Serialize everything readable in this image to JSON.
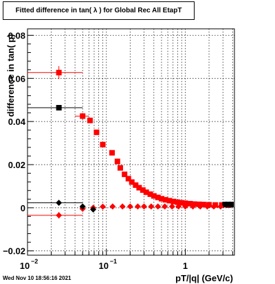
{
  "title": "Fitted difference in tan( λ ) for Global Rec All EtapT",
  "footer": "Wed Nov 10 18:56:16 2021",
  "chart_data": {
    "type": "scatter",
    "title": "Fitted difference in tan( λ ) for Global Rec All EtapT",
    "xlabel": "pT/|q| (GeV/c)",
    "ylabel": "difference in tan( p)",
    "xscale": "log",
    "xlim": [
      0.01,
      4.2
    ],
    "ylim": [
      -0.022,
      0.083
    ],
    "x_ticks": [
      {
        "v": 0.01,
        "label": "10"
      },
      {
        "v": 0.1,
        "label": "10"
      },
      {
        "v": 1,
        "label": "1"
      }
    ],
    "x_tick_exponents": [
      "−2",
      "−1",
      ""
    ],
    "y_ticks": [
      {
        "v": -0.02,
        "label": "−0.02"
      },
      {
        "v": 0,
        "label": "0"
      },
      {
        "v": 0.02,
        "label": "0.02"
      },
      {
        "v": 0.04,
        "label": "0.04"
      },
      {
        "v": 0.06,
        "label": "0.06"
      },
      {
        "v": 0.08,
        "label": "0.08"
      }
    ],
    "grid": true,
    "colors": {
      "red": "#ff0000",
      "black": "#000000"
    },
    "series": [
      {
        "color": "#ff0000",
        "marker": "square",
        "points": [
          {
            "x": 0.025,
            "y": 0.0627,
            "xerr": [
              0.015,
              0.025
            ],
            "yerr": 0.003
          },
          {
            "x": 0.05,
            "y": 0.0425,
            "xerr": [
              0.01,
              0.01
            ],
            "yerr": 0.0015
          },
          {
            "x": 0.062,
            "y": 0.0405
          },
          {
            "x": 0.075,
            "y": 0.035
          },
          {
            "x": 0.09,
            "y": 0.0293
          },
          {
            "x": 0.118,
            "y": 0.0255
          },
          {
            "x": 0.138,
            "y": 0.0215
          },
          {
            "x": 0.15,
            "y": 0.0185
          },
          {
            "x": 0.17,
            "y": 0.0155
          },
          {
            "x": 0.19,
            "y": 0.0135
          },
          {
            "x": 0.21,
            "y": 0.0119
          },
          {
            "x": 0.235,
            "y": 0.0105
          },
          {
            "x": 0.26,
            "y": 0.0093
          },
          {
            "x": 0.29,
            "y": 0.0082
          },
          {
            "x": 0.32,
            "y": 0.0072
          },
          {
            "x": 0.36,
            "y": 0.0063
          },
          {
            "x": 0.4,
            "y": 0.0055
          },
          {
            "x": 0.45,
            "y": 0.0048
          },
          {
            "x": 0.5,
            "y": 0.0042
          },
          {
            "x": 0.56,
            "y": 0.0037
          },
          {
            "x": 0.63,
            "y": 0.0033
          },
          {
            "x": 0.71,
            "y": 0.0029
          },
          {
            "x": 0.8,
            "y": 0.0026
          },
          {
            "x": 0.9,
            "y": 0.0023
          },
          {
            "x": 1.0,
            "y": 0.0021
          },
          {
            "x": 1.15,
            "y": 0.0019
          },
          {
            "x": 1.3,
            "y": 0.0017
          },
          {
            "x": 1.5,
            "y": 0.0016
          },
          {
            "x": 1.7,
            "y": 0.0015
          },
          {
            "x": 2.0,
            "y": 0.0014
          },
          {
            "x": 2.4,
            "y": 0.0013
          },
          {
            "x": 2.9,
            "y": 0.0013
          },
          {
            "x": 3.5,
            "y": 0.0012
          }
        ]
      },
      {
        "color": "#000000",
        "marker": "square",
        "points": [
          {
            "x": 0.025,
            "y": 0.0464,
            "xerr": [
              0.015,
              0.025
            ],
            "yerr": 0.001
          },
          {
            "x": 3.2,
            "y": 0.0015
          },
          {
            "x": 3.5,
            "y": 0.0015
          },
          {
            "x": 3.8,
            "y": 0.0015
          }
        ]
      },
      {
        "color": "#ff0000",
        "marker": "diamond",
        "points": [
          {
            "x": 0.025,
            "y": -0.0035,
            "xerr": [
              0.015,
              0.025
            ],
            "yerr": 0.0015
          },
          {
            "x": 0.05,
            "y": -0.0005
          },
          {
            "x": 0.068,
            "y": 0.0
          },
          {
            "x": 0.09,
            "y": 0.0005
          },
          {
            "x": 0.12,
            "y": 0.0006
          },
          {
            "x": 0.16,
            "y": 0.0006
          },
          {
            "x": 0.2,
            "y": 0.0006
          },
          {
            "x": 0.25,
            "y": 0.0006
          },
          {
            "x": 0.3,
            "y": 0.0006
          },
          {
            "x": 0.37,
            "y": 0.0006
          },
          {
            "x": 0.45,
            "y": 0.0006
          },
          {
            "x": 0.55,
            "y": 0.0006
          },
          {
            "x": 0.68,
            "y": 0.0006
          },
          {
            "x": 0.82,
            "y": 0.0006
          },
          {
            "x": 1.0,
            "y": 0.0006
          },
          {
            "x": 1.25,
            "y": 0.0006
          },
          {
            "x": 1.55,
            "y": 0.0006
          },
          {
            "x": 1.9,
            "y": 0.0006
          },
          {
            "x": 2.3,
            "y": 0.0006
          },
          {
            "x": 2.8,
            "y": 0.0006
          }
        ]
      },
      {
        "color": "#000000",
        "marker": "diamond",
        "points": [
          {
            "x": 0.025,
            "y": 0.0023,
            "xerr": [
              0.015,
              0.025
            ],
            "yerr": 0.0008
          },
          {
            "x": 0.05,
            "y": 0.0006
          },
          {
            "x": 0.068,
            "y": -0.0008
          },
          {
            "x": 3.3,
            "y": 0.0015
          },
          {
            "x": 3.7,
            "y": 0.0015
          }
        ]
      }
    ]
  }
}
